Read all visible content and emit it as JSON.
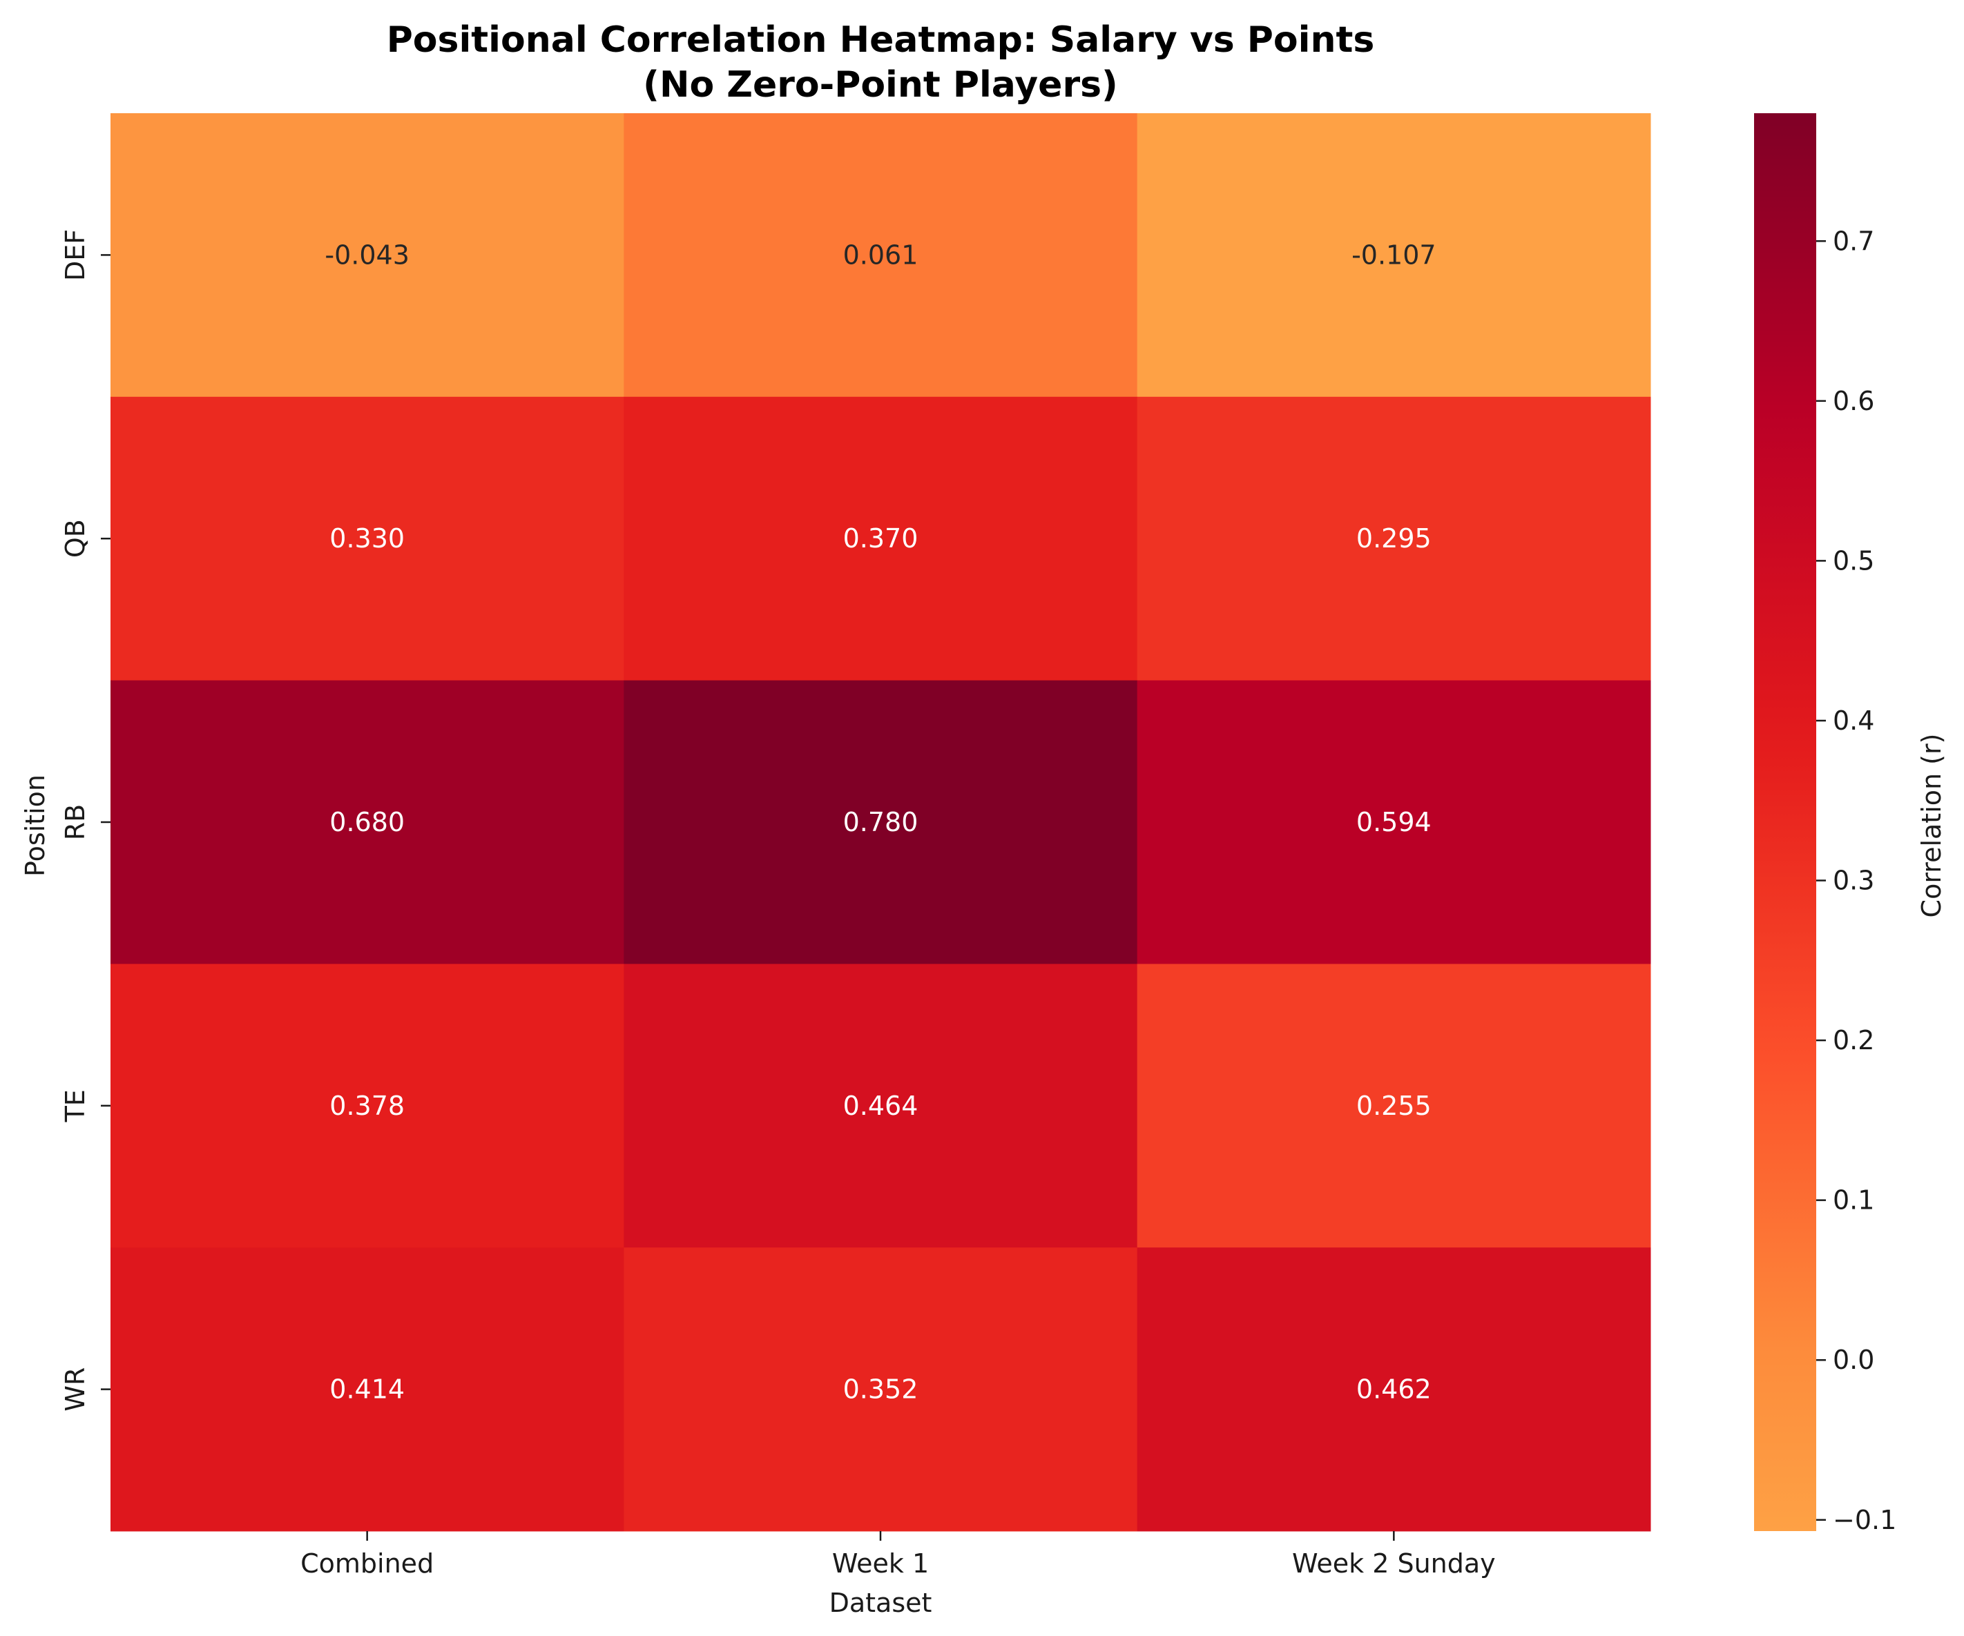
{
  "chart_data": {
    "type": "heatmap",
    "title": "Positional Correlation Heatmap: Salary vs Points",
    "subtitle": "(No Zero-Point Players)",
    "xlabel": "Dataset",
    "ylabel": "Position",
    "x_categories": [
      "Combined",
      "Week 1",
      "Week 2 Sunday"
    ],
    "y_categories": [
      "DEF",
      "QB",
      "RB",
      "TE",
      "WR"
    ],
    "values": [
      [
        -0.043,
        0.061,
        -0.107
      ],
      [
        0.33,
        0.37,
        0.295
      ],
      [
        0.68,
        0.78,
        0.594
      ],
      [
        0.378,
        0.464,
        0.255
      ],
      [
        0.414,
        0.352,
        0.462
      ]
    ],
    "cell_labels": [
      [
        "-0.043",
        "0.061",
        "-0.107"
      ],
      [
        "0.330",
        "0.370",
        "0.295"
      ],
      [
        "0.680",
        "0.780",
        "0.594"
      ],
      [
        "0.378",
        "0.464",
        "0.255"
      ],
      [
        "0.414",
        "0.352",
        "0.462"
      ]
    ],
    "colormap": "YlOrRd",
    "colorbar": {
      "label": "Correlation (r)",
      "range": [
        -0.107,
        0.78
      ],
      "ticks": [
        -0.1,
        0.0,
        0.1,
        0.2,
        0.3,
        0.4,
        0.5,
        0.6,
        0.7
      ],
      "tick_labels": [
        "−0.1",
        "0.0",
        "0.1",
        "0.2",
        "0.3",
        "0.4",
        "0.5",
        "0.6",
        "0.7"
      ]
    },
    "grid": false,
    "legend": "colorbar-right"
  }
}
